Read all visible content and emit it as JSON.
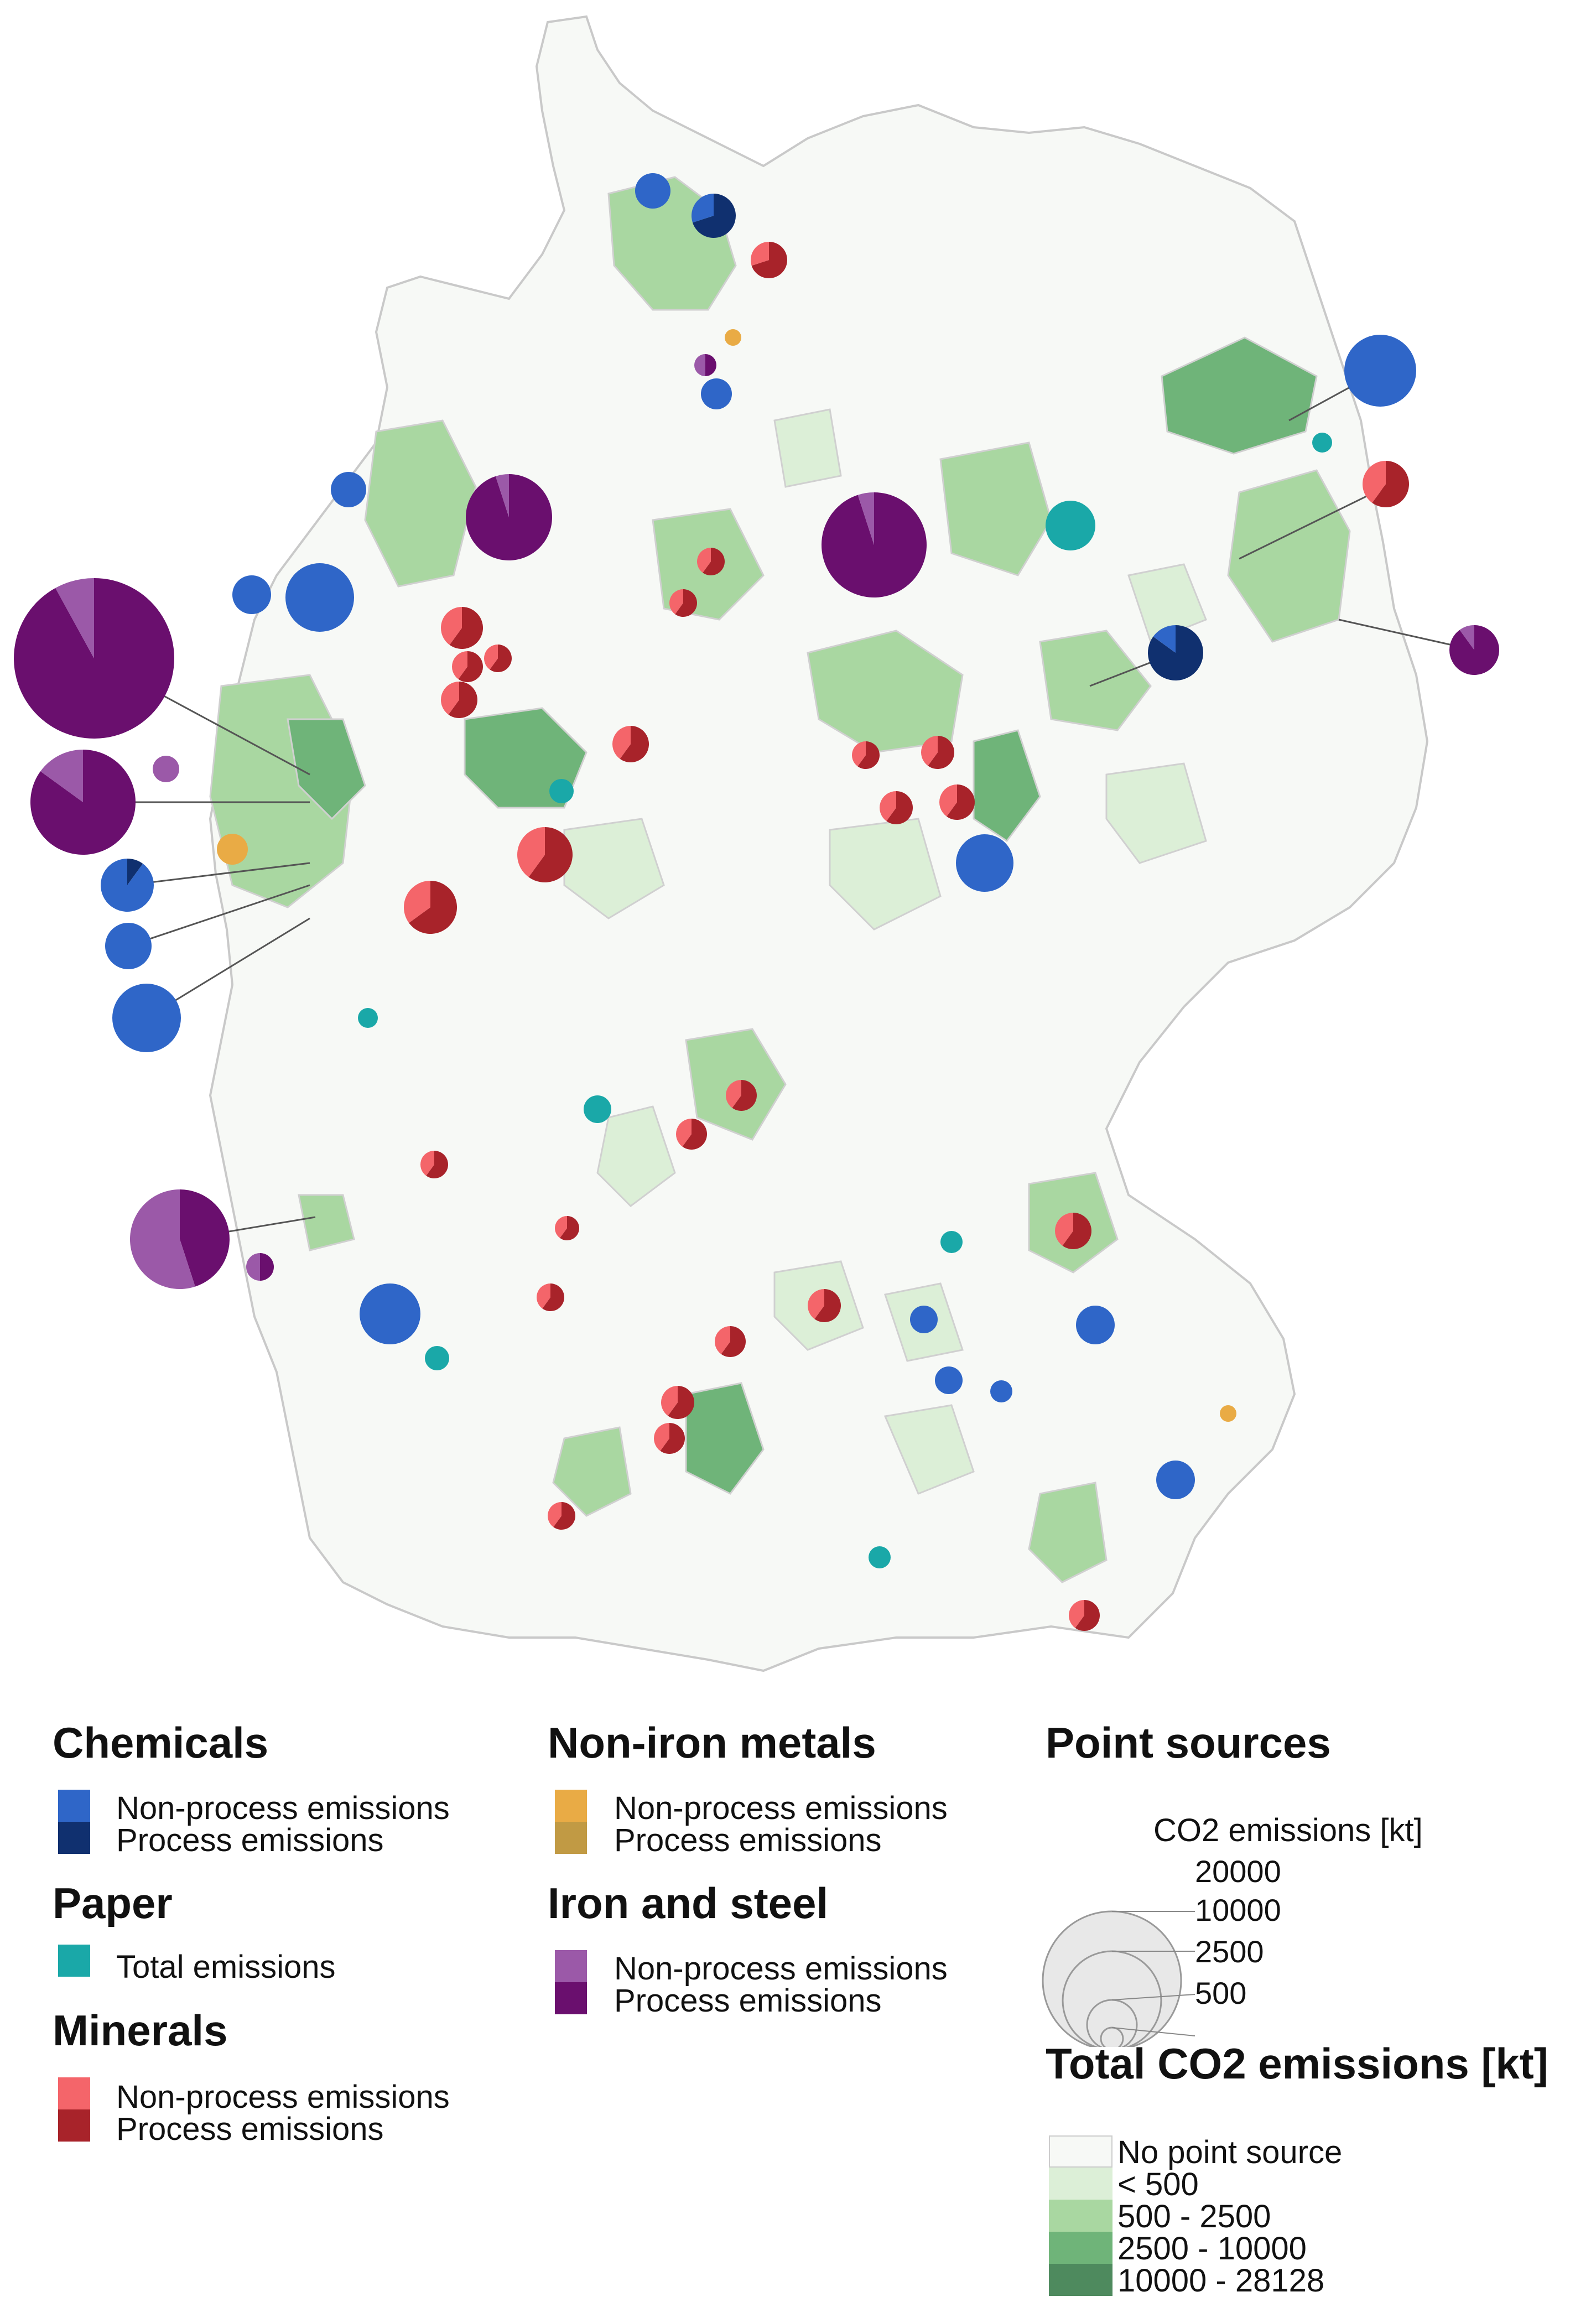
{
  "colors": {
    "chem_nonprocess": "#2f66c8",
    "chem_process": "#10306f",
    "paper_total": "#1aa8a8",
    "minerals_nonprocess": "#f4656a",
    "minerals_process": "#a8232a",
    "nonferrous_nonprocess": "#e9ab45",
    "nonferrous_process": "#c19a44",
    "iron_nonprocess": "#9b59a8",
    "iron_process": "#6a0f6e",
    "ramp": [
      "#f7f9f6",
      "#dcefd7",
      "#a9d7a1",
      "#6fb479",
      "#4e8a5e"
    ]
  },
  "legend": {
    "chemicals": {
      "title": "Chemicals",
      "nonprocess": "Non-process emissions",
      "process": "Process emissions"
    },
    "paper": {
      "title": "Paper",
      "total": "Total emissions"
    },
    "minerals": {
      "title": "Minerals",
      "nonprocess": "Non-process emissions",
      "process": "Process emissions"
    },
    "nonferrous": {
      "title": "Non-iron metals",
      "nonprocess": "Non-process emissions",
      "process": "Process emissions"
    },
    "iron": {
      "title": "Iron and steel",
      "nonprocess": "Non-process emissions",
      "process": "Process emissions"
    },
    "point_sources": {
      "title": "Point sources",
      "subtitle": "CO2 emissions [kt]",
      "sizes": [
        "20000",
        "10000",
        "2500",
        "500"
      ]
    },
    "total": {
      "title": "Total CO2 emissions [kt]",
      "classes": [
        "No point source",
        "< 500",
        "500 - 2500",
        "2500 - 10000",
        "10000 - 28128"
      ]
    }
  }
}
